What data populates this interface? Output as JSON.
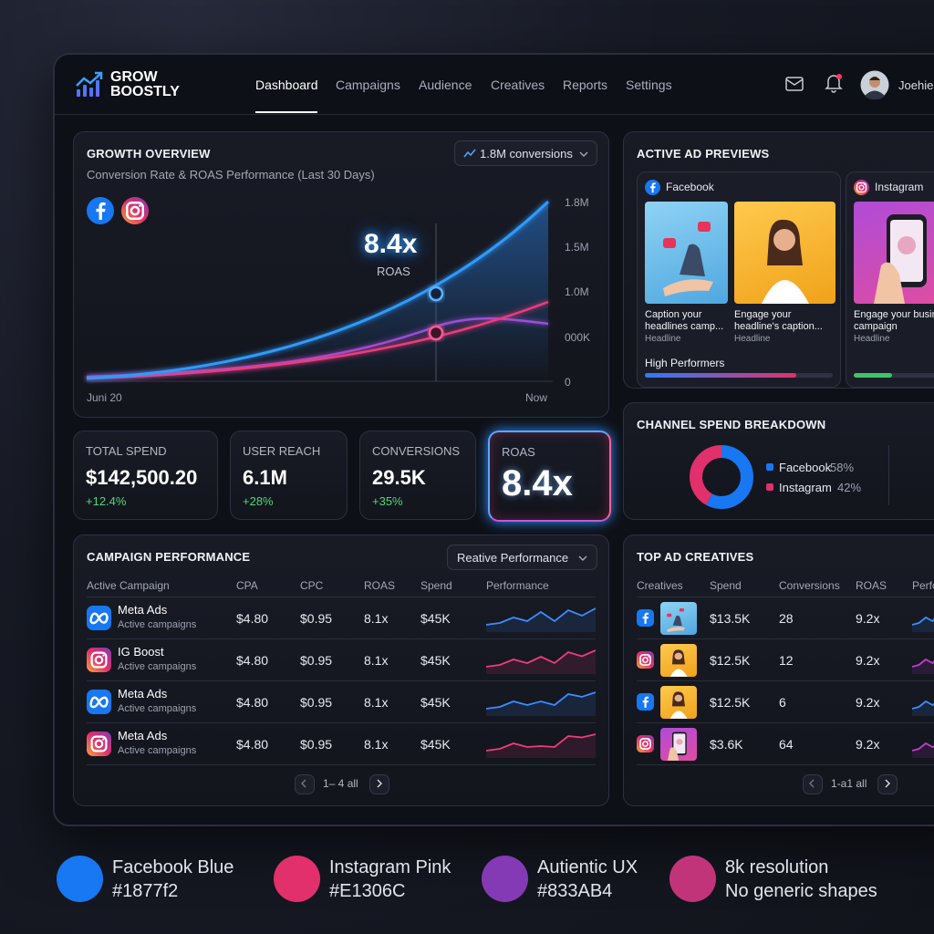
{
  "brand": {
    "line1": "GROW",
    "line2": "BOOSTLY"
  },
  "nav": [
    "Dashboard",
    "Campaigns",
    "Audience",
    "Creatives",
    "Reports",
    "Settings"
  ],
  "user": {
    "name": "Joehie"
  },
  "growth_overview": {
    "title": "GROWTH OVERVIEW",
    "subtitle": "Conversion Rate & ROAS Performance (Last 30 Days)",
    "dropdown": "1.8M conversions",
    "callout_value": "8.4x",
    "callout_label": "ROAS",
    "y_axis_labels": [
      "1.8M",
      "1.5M",
      "1.0M",
      "000K",
      "0"
    ],
    "x_start": "Juni 20",
    "x_end": "Now"
  },
  "stats": [
    {
      "label": "TOTAL SPEND",
      "value": "$142,500.20",
      "change": "+12.4%"
    },
    {
      "label": "USER REACH",
      "value": "6.1M",
      "change": "+28%"
    },
    {
      "label": "CONVERSIONS",
      "value": "29.5K",
      "change": "+35%"
    },
    {
      "label": "ROAS",
      "value": "8.4x"
    }
  ],
  "campaign_performance": {
    "title": "CAMPAIGN PERFORMANCE",
    "dropdown": "Reative Performance",
    "columns": [
      "Active Campaign",
      "CPA",
      "CPC",
      "ROAS",
      "Spend",
      "Performance"
    ],
    "rows": [
      {
        "icon": "meta",
        "name": "Meta Ads",
        "subtitle": "Active campaigns",
        "cpa": "$4.80",
        "cpc": "$0.95",
        "roas": "8.1x",
        "spend": "$45K"
      },
      {
        "icon": "instagram",
        "name": "IG Boost",
        "subtitle": "Active campaigns",
        "cpa": "$4.80",
        "cpc": "$0.95",
        "roas": "8.1x",
        "spend": "$45K"
      },
      {
        "icon": "meta",
        "name": "Meta Ads",
        "subtitle": "Active campaigns",
        "cpa": "$4.80",
        "cpc": "$0.95",
        "roas": "8.1x",
        "spend": "$45K"
      },
      {
        "icon": "instagram",
        "name": "Meta Ads",
        "subtitle": "Active campaigns",
        "cpa": "$4.80",
        "cpc": "$0.95",
        "roas": "8.1x",
        "spend": "$45K"
      }
    ],
    "pagination": "1– 4 all"
  },
  "active_ad_previews": {
    "title": "ACTIVE AD PREVIEWS",
    "cards": [
      {
        "platform": "Facebook",
        "ads": [
          {
            "caption": "Caption your headlines camp...",
            "label": "Headline"
          },
          {
            "caption": "Engage your headline's caption...",
            "label": "Headline"
          }
        ],
        "footer": "High Performers"
      },
      {
        "platform": "Instagram",
        "ads": [
          {
            "caption": "Engage your business campaign",
            "label": "Headline"
          }
        ]
      }
    ]
  },
  "channel_spend": {
    "title": "CHANNEL SPEND BREAKDOWN",
    "segments": [
      {
        "name": "Facebook",
        "value": 58,
        "label": "58%",
        "color": "#1877f2"
      },
      {
        "name": "Instagram",
        "value": 42,
        "label": "42%",
        "color": "#E1306C"
      }
    ]
  },
  "top_ad_creatives": {
    "title": "TOP AD CREATIVES",
    "columns": [
      "Creatives",
      "Spend",
      "Conversions",
      "ROAS",
      "Performance"
    ],
    "rows": [
      {
        "icon": "facebook",
        "spend": "$13.5K",
        "conversions": 28,
        "roas": "9.2x"
      },
      {
        "icon": "instagram",
        "spend": "$12.5K",
        "conversions": 12,
        "roas": "9.2x"
      },
      {
        "icon": "facebook",
        "spend": "$12.5K",
        "conversions": 6,
        "roas": "9.2x"
      },
      {
        "icon": "instagram",
        "spend": "$3.6K",
        "conversions": 64,
        "roas": "9.2x"
      }
    ],
    "pagination": "1-a1 all"
  },
  "palette": [
    {
      "name": "Facebook Blue",
      "detail": "#1877f2"
    },
    {
      "name": "Instagram Pink",
      "detail": "#E1306C"
    },
    {
      "name": "Autientic UX",
      "detail": "#833AB4"
    },
    {
      "name": "8k resolution",
      "detail": "No generic shapes"
    }
  ]
}
